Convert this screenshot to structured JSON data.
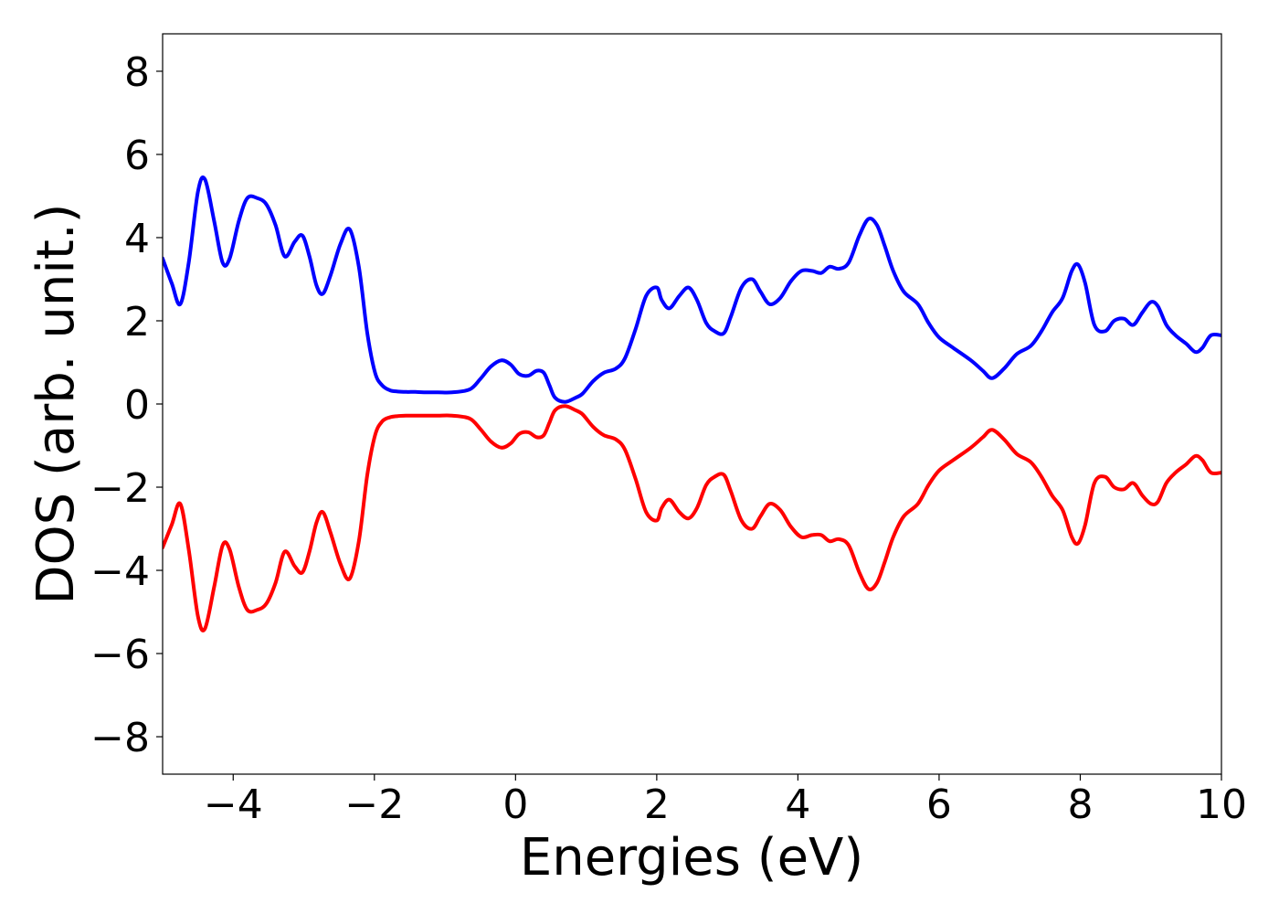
{
  "chart_data": {
    "type": "line",
    "title": "",
    "xlabel": "Energies (eV)",
    "ylabel": "DOS (arb. unit.)",
    "xlim": [
      -5,
      10
    ],
    "ylim": [
      -8.9,
      8.9
    ],
    "xticks": [
      -4,
      -2,
      0,
      2,
      4,
      6,
      8,
      10
    ],
    "yticks": [
      -8,
      -6,
      -4,
      -2,
      0,
      2,
      4,
      6,
      8
    ],
    "xtick_labels": [
      "−4",
      "−2",
      "0",
      "2",
      "4",
      "6",
      "8",
      "10"
    ],
    "ytick_labels": [
      "−8",
      "−6",
      "−4",
      "−2",
      "0",
      "2",
      "4",
      "6",
      "8"
    ],
    "grid": false,
    "legend": "none",
    "series": [
      {
        "color": "#0000ff",
        "x": [
          -5.0,
          -4.87,
          -4.75,
          -4.63,
          -4.5,
          -4.4,
          -4.27,
          -4.15,
          -4.05,
          -3.92,
          -3.8,
          -3.66,
          -3.53,
          -3.4,
          -3.27,
          -3.13,
          -3.02,
          -2.92,
          -2.82,
          -2.73,
          -2.62,
          -2.48,
          -2.35,
          -2.22,
          -2.1,
          -1.99,
          -1.89,
          -1.78,
          -1.67,
          -1.55,
          -1.42,
          -1.3,
          -1.1,
          -0.9,
          -0.65,
          -0.5,
          -0.35,
          -0.2,
          -0.07,
          0.05,
          0.18,
          0.3,
          0.4,
          0.48,
          0.56,
          0.7,
          0.85,
          0.95,
          1.1,
          1.25,
          1.42,
          1.55,
          1.7,
          1.85,
          2.0,
          2.07,
          2.18,
          2.32,
          2.45,
          2.57,
          2.7,
          2.82,
          2.95,
          3.05,
          3.2,
          3.35,
          3.47,
          3.6,
          3.75,
          3.9,
          4.05,
          4.2,
          4.33,
          4.45,
          4.58,
          4.72,
          4.87,
          5.0,
          5.12,
          5.23,
          5.35,
          5.5,
          5.7,
          5.85,
          6.0,
          6.2,
          6.45,
          6.62,
          6.75,
          6.92,
          7.1,
          7.3,
          7.45,
          7.6,
          7.75,
          7.88,
          7.97,
          8.07,
          8.2,
          8.35,
          8.48,
          8.62,
          8.75,
          8.88,
          9.0,
          9.1,
          9.22,
          9.35,
          9.5,
          9.63,
          9.73,
          9.85,
          10.0
        ],
        "values": [
          3.5,
          2.9,
          2.4,
          3.4,
          5.1,
          5.4,
          4.4,
          3.4,
          3.5,
          4.4,
          4.95,
          4.95,
          4.8,
          4.3,
          3.55,
          3.9,
          4.05,
          3.55,
          2.85,
          2.65,
          3.1,
          3.85,
          4.2,
          3.3,
          1.7,
          0.75,
          0.45,
          0.33,
          0.3,
          0.29,
          0.29,
          0.28,
          0.28,
          0.28,
          0.35,
          0.6,
          0.9,
          1.05,
          0.95,
          0.72,
          0.68,
          0.8,
          0.75,
          0.45,
          0.15,
          0.05,
          0.15,
          0.25,
          0.55,
          0.75,
          0.85,
          1.1,
          1.8,
          2.6,
          2.8,
          2.5,
          2.3,
          2.6,
          2.8,
          2.5,
          1.95,
          1.75,
          1.7,
          2.1,
          2.8,
          3.0,
          2.7,
          2.4,
          2.55,
          2.95,
          3.2,
          3.2,
          3.15,
          3.3,
          3.25,
          3.4,
          4.05,
          4.45,
          4.3,
          3.8,
          3.2,
          2.7,
          2.4,
          1.95,
          1.6,
          1.35,
          1.05,
          0.8,
          0.62,
          0.85,
          1.2,
          1.4,
          1.75,
          2.2,
          2.55,
          3.2,
          3.35,
          2.9,
          1.9,
          1.75,
          2.0,
          2.05,
          1.9,
          2.2,
          2.45,
          2.35,
          1.9,
          1.65,
          1.45,
          1.25,
          1.35,
          1.65,
          1.65
        ]
      },
      {
        "color": "#ff0000",
        "x": [
          -5.0,
          -4.87,
          -4.75,
          -4.63,
          -4.5,
          -4.4,
          -4.27,
          -4.15,
          -4.05,
          -3.92,
          -3.8,
          -3.66,
          -3.53,
          -3.4,
          -3.27,
          -3.13,
          -3.02,
          -2.92,
          -2.82,
          -2.73,
          -2.62,
          -2.48,
          -2.35,
          -2.22,
          -2.1,
          -1.99,
          -1.89,
          -1.78,
          -1.67,
          -1.55,
          -1.42,
          -1.3,
          -1.1,
          -0.9,
          -0.65,
          -0.5,
          -0.35,
          -0.2,
          -0.07,
          0.05,
          0.18,
          0.3,
          0.4,
          0.48,
          0.56,
          0.7,
          0.85,
          0.95,
          1.1,
          1.25,
          1.42,
          1.55,
          1.7,
          1.85,
          2.0,
          2.07,
          2.18,
          2.32,
          2.45,
          2.57,
          2.7,
          2.82,
          2.95,
          3.05,
          3.2,
          3.35,
          3.47,
          3.6,
          3.75,
          3.9,
          4.05,
          4.2,
          4.33,
          4.45,
          4.58,
          4.72,
          4.87,
          5.0,
          5.12,
          5.23,
          5.35,
          5.5,
          5.7,
          5.85,
          6.0,
          6.2,
          6.45,
          6.62,
          6.75,
          6.92,
          7.1,
          7.3,
          7.45,
          7.6,
          7.75,
          7.88,
          7.97,
          8.07,
          8.2,
          8.35,
          8.48,
          8.62,
          8.75,
          8.88,
          9.0,
          9.1,
          9.22,
          9.35,
          9.5,
          9.63,
          9.73,
          9.85,
          10.0
        ],
        "values": [
          -3.45,
          -2.9,
          -2.4,
          -3.5,
          -5.1,
          -5.4,
          -4.4,
          -3.4,
          -3.5,
          -4.4,
          -4.95,
          -4.95,
          -4.8,
          -4.3,
          -3.55,
          -3.9,
          -4.05,
          -3.55,
          -2.85,
          -2.6,
          -3.1,
          -3.85,
          -4.2,
          -3.3,
          -1.7,
          -0.75,
          -0.42,
          -0.32,
          -0.29,
          -0.28,
          -0.28,
          -0.28,
          -0.28,
          -0.28,
          -0.35,
          -0.6,
          -0.9,
          -1.05,
          -0.95,
          -0.72,
          -0.68,
          -0.8,
          -0.75,
          -0.45,
          -0.15,
          -0.05,
          -0.15,
          -0.25,
          -0.55,
          -0.75,
          -0.85,
          -1.1,
          -1.8,
          -2.6,
          -2.8,
          -2.5,
          -2.3,
          -2.6,
          -2.75,
          -2.5,
          -1.95,
          -1.75,
          -1.7,
          -2.1,
          -2.8,
          -3.0,
          -2.7,
          -2.4,
          -2.55,
          -2.95,
          -3.2,
          -3.15,
          -3.15,
          -3.3,
          -3.25,
          -3.4,
          -4.05,
          -4.45,
          -4.3,
          -3.8,
          -3.2,
          -2.7,
          -2.4,
          -1.95,
          -1.6,
          -1.35,
          -1.05,
          -0.8,
          -0.62,
          -0.85,
          -1.2,
          -1.4,
          -1.75,
          -2.2,
          -2.55,
          -3.2,
          -3.35,
          -2.9,
          -1.9,
          -1.75,
          -2.0,
          -2.05,
          -1.9,
          -2.2,
          -2.4,
          -2.35,
          -1.9,
          -1.65,
          -1.45,
          -1.25,
          -1.35,
          -1.65,
          -1.65
        ]
      }
    ]
  }
}
